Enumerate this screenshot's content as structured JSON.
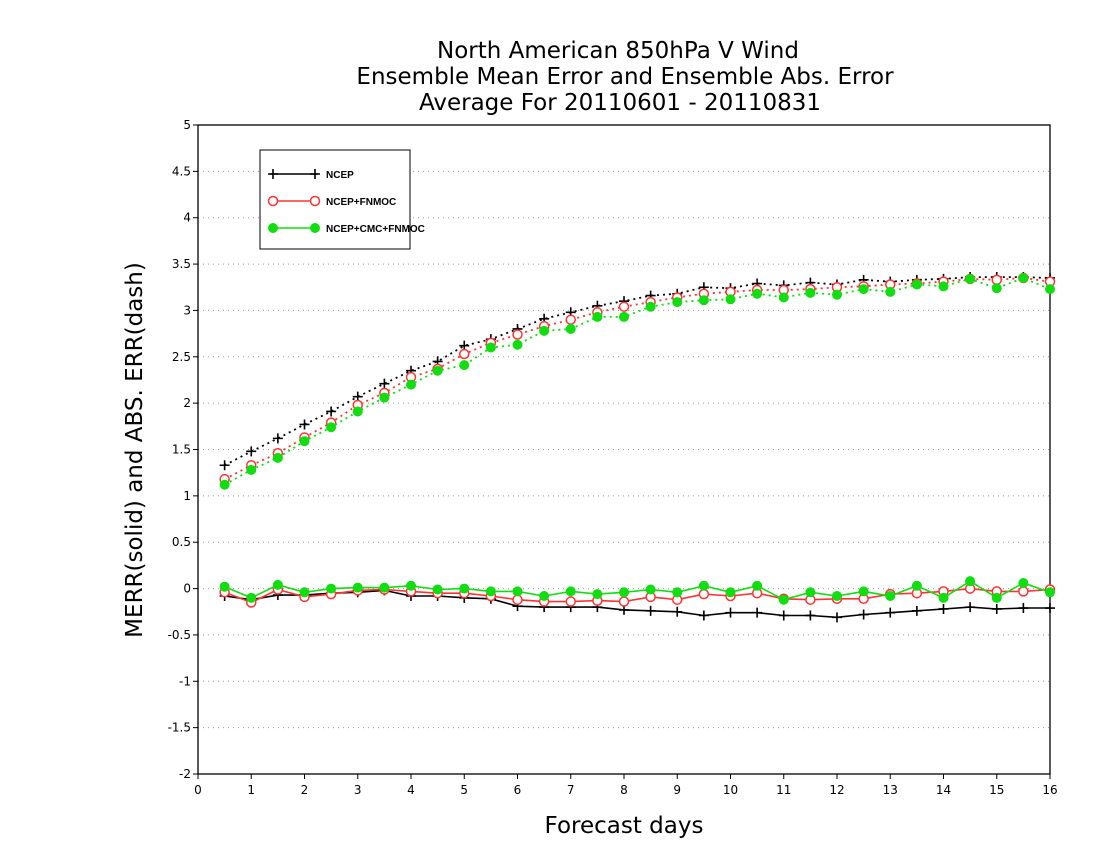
{
  "chart_data": {
    "type": "line",
    "title": [
      "North American 850hPa V Wind",
      "Ensemble Mean Error and Ensemble Abs. Error",
      "Average For 20110601 - 20110831"
    ],
    "xlabel": "Forecast days",
    "ylabel": "MERR(solid) and ABS. ERR(dash)",
    "xlim": [
      0,
      16
    ],
    "ylim": [
      -2,
      5
    ],
    "x_ticks": [
      "0",
      "1",
      "2",
      "3",
      "4",
      "5",
      "6",
      "7",
      "8",
      "9",
      "10",
      "11",
      "12",
      "13",
      "14",
      "15",
      "16"
    ],
    "y_ticks": [
      "-2",
      "-1.5",
      "-1",
      "-0.5",
      "0",
      "0.5",
      "1",
      "1.5",
      "2",
      "2.5",
      "3",
      "3.5",
      "4",
      "4.5",
      "5"
    ],
    "grid": "horizontal dotted",
    "legend_position": "top-left",
    "x": [
      0.5,
      1,
      1.5,
      2,
      2.5,
      3,
      3.5,
      4,
      4.5,
      5,
      5.5,
      6,
      6.5,
      7,
      7.5,
      8,
      8.5,
      9,
      9.5,
      10,
      10.5,
      11,
      11.5,
      12,
      12.5,
      13,
      13.5,
      14,
      14.5,
      15,
      15.5,
      16
    ],
    "series": [
      {
        "name": "NCEP",
        "color": "#000000",
        "marker": "plus",
        "abs_err": [
          1.33,
          1.48,
          1.62,
          1.77,
          1.91,
          2.07,
          2.21,
          2.35,
          2.45,
          2.62,
          2.69,
          2.8,
          2.91,
          2.98,
          3.05,
          3.1,
          3.16,
          3.18,
          3.25,
          3.24,
          3.29,
          3.27,
          3.3,
          3.28,
          3.33,
          3.31,
          3.33,
          3.34,
          3.36,
          3.36,
          3.36,
          3.35
        ],
        "mean_err": [
          -0.08,
          -0.12,
          -0.07,
          -0.07,
          -0.05,
          -0.04,
          -0.02,
          -0.08,
          -0.08,
          -0.1,
          -0.11,
          -0.19,
          -0.2,
          -0.2,
          -0.2,
          -0.23,
          -0.24,
          -0.25,
          -0.29,
          -0.26,
          -0.26,
          -0.29,
          -0.29,
          -0.31,
          -0.28,
          -0.26,
          -0.24,
          -0.22,
          -0.2,
          -0.22,
          -0.21,
          -0.21
        ]
      },
      {
        "name": "NCEP+FNMOC",
        "color": "#ff3333",
        "marker": "open-circle",
        "abs_err": [
          1.18,
          1.33,
          1.46,
          1.63,
          1.79,
          1.98,
          2.11,
          2.28,
          2.37,
          2.53,
          2.65,
          2.74,
          2.83,
          2.9,
          2.98,
          3.04,
          3.09,
          3.14,
          3.18,
          3.2,
          3.22,
          3.22,
          3.23,
          3.25,
          3.26,
          3.28,
          3.29,
          3.31,
          3.34,
          3.33,
          3.35,
          3.31
        ],
        "mean_err": [
          -0.04,
          -0.15,
          -0.01,
          -0.09,
          -0.06,
          -0.02,
          -0.01,
          -0.03,
          -0.05,
          -0.05,
          -0.08,
          -0.12,
          -0.14,
          -0.14,
          -0.13,
          -0.14,
          -0.09,
          -0.12,
          -0.06,
          -0.08,
          -0.05,
          -0.11,
          -0.12,
          -0.11,
          -0.11,
          -0.06,
          -0.05,
          -0.03,
          0.0,
          -0.03,
          -0.03,
          -0.01
        ]
      },
      {
        "name": "NCEP+CMC+FNMOC",
        "color": "#11dd11",
        "marker": "filled-circle",
        "abs_err": [
          1.12,
          1.28,
          1.41,
          1.59,
          1.74,
          1.91,
          2.06,
          2.2,
          2.35,
          2.41,
          2.6,
          2.63,
          2.78,
          2.8,
          2.93,
          2.93,
          3.04,
          3.09,
          3.11,
          3.12,
          3.18,
          3.14,
          3.19,
          3.17,
          3.23,
          3.2,
          3.28,
          3.26,
          3.34,
          3.24,
          3.35,
          3.23
        ],
        "mean_err": [
          0.02,
          -0.1,
          0.04,
          -0.04,
          0.0,
          0.01,
          0.01,
          0.03,
          -0.01,
          0.0,
          -0.03,
          -0.03,
          -0.08,
          -0.03,
          -0.06,
          -0.04,
          -0.01,
          -0.04,
          0.03,
          -0.04,
          0.03,
          -0.12,
          -0.04,
          -0.08,
          -0.03,
          -0.08,
          0.03,
          -0.1,
          0.08,
          -0.1,
          0.06,
          -0.04
        ]
      }
    ]
  }
}
